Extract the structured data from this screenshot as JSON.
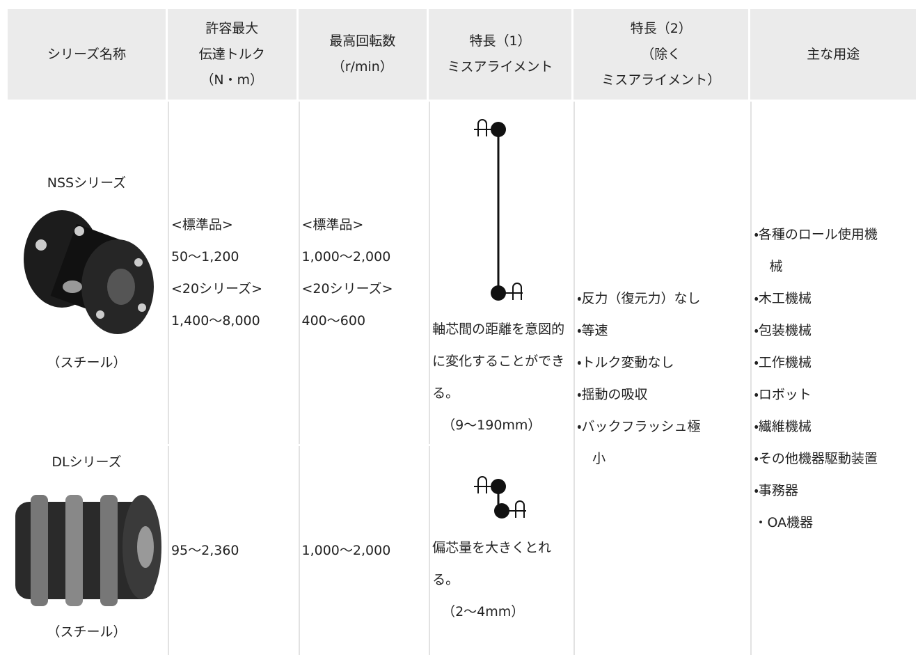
{
  "table": {
    "header": [
      [
        "シリーズ名称"
      ],
      [
        "許容最大",
        "伝達トルク",
        "（N・m）"
      ],
      [
        "最高回転数",
        "（r/min）"
      ],
      [
        "特長（1）",
        "ミスアライメント"
      ],
      [
        "特長（2）",
        "（除く",
        "ミスアライメント）"
      ],
      [
        "主な用途"
      ]
    ],
    "rows": [
      {
        "name": "NSSシリーズ",
        "material": "（スチール）",
        "torque": [
          "<標準品>",
          "50〜1,200",
          "<20シリーズ>",
          "1,400〜8,000"
        ],
        "speed": [
          "<標準品>",
          "1,000〜2,000",
          "<20シリーズ>",
          "400〜600"
        ],
        "feature1": "軸芯間の距離を意図的に変化することができる。",
        "feature1_range": "（9〜190mm）"
      },
      {
        "name": "DLシリーズ",
        "material": "（スチール）",
        "torque": [
          "95〜2,360"
        ],
        "speed": [
          "1,000〜2,000"
        ],
        "feature1": "偏芯量を大きくとれる。",
        "feature1_range": "（2〜4mm）"
      }
    ],
    "feature2": [
      "・反力（復元力）なし",
      "・等速",
      "・トルク変動なし",
      "・揺動の吸収",
      "・バックフラッシュ極",
      "小"
    ],
    "uses": [
      "・各種のロール使用機",
      "械",
      "・木工機械",
      "・包装機械",
      "・工作機械",
      "・ロボット",
      "・繊維機械",
      "・その他機器駆動装置",
      "・事務器",
      "・OA機器"
    ]
  }
}
